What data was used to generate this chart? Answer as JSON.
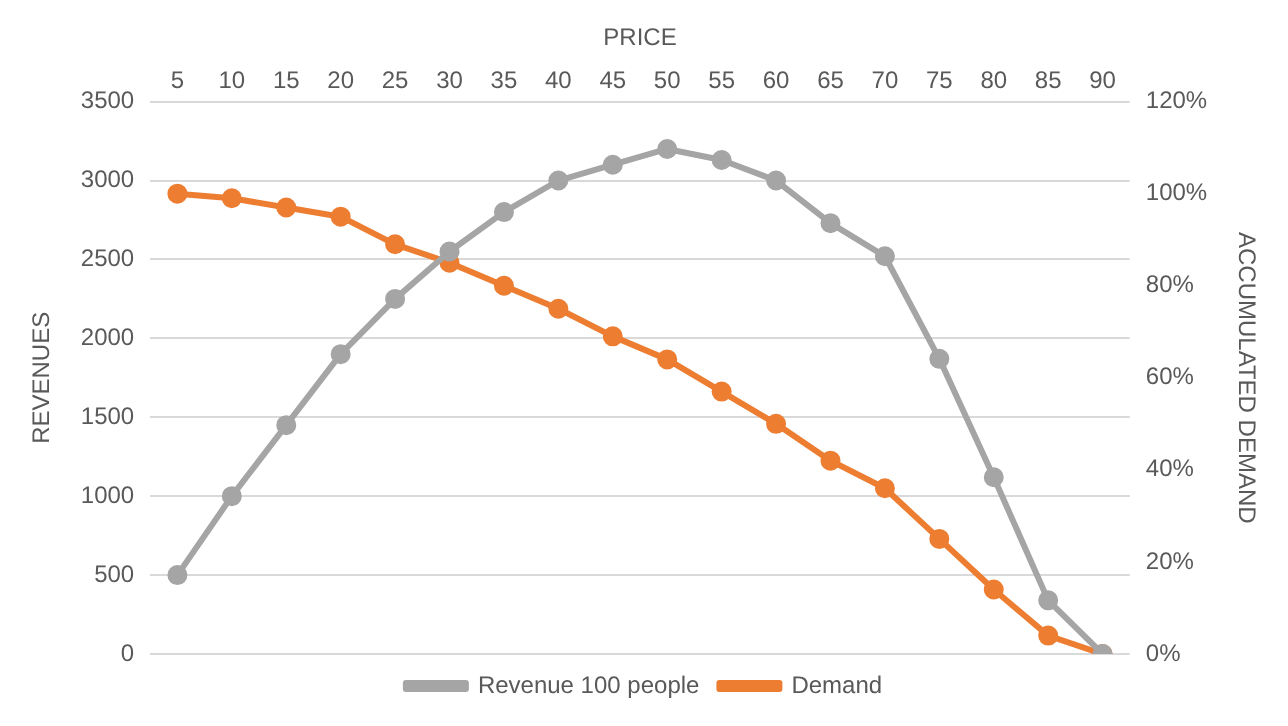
{
  "chart_data": {
    "type": "line",
    "xlabel": "PRICE",
    "ylabel": "REVENUES",
    "y2label": "ACCUMULATED DEMAND",
    "categories": [
      "5",
      "10",
      "15",
      "20",
      "25",
      "30",
      "35",
      "40",
      "45",
      "50",
      "55",
      "60",
      "65",
      "70",
      "75",
      "80",
      "85",
      "90"
    ],
    "series": [
      {
        "name": "Revenue 100 people",
        "color": "#a5a5a5",
        "values": [
          500,
          1000,
          1450,
          1900,
          2250,
          2550,
          2800,
          3000,
          3100,
          3200,
          3130,
          3000,
          2730,
          2520,
          1870,
          1120,
          340,
          0
        ]
      },
      {
        "name": "Demand",
        "color": "#ed7d31",
        "axis": "y2",
        "values": [
          100,
          99,
          97,
          95,
          89,
          85,
          80,
          75,
          69,
          64,
          57,
          50,
          42,
          36,
          25,
          14,
          4,
          0
        ]
      }
    ],
    "ylim": [
      0,
      3500
    ],
    "yticks": [
      0,
      500,
      1000,
      1500,
      2000,
      2500,
      3000,
      3500
    ],
    "y2lim": [
      0,
      120
    ],
    "y2ticks": [
      {
        "value": 0,
        "label": "0%"
      },
      {
        "value": 20,
        "label": "20%"
      },
      {
        "value": 40,
        "label": "40%"
      },
      {
        "value": 60,
        "label": "60%"
      },
      {
        "value": 80,
        "label": "80%"
      },
      {
        "value": 100,
        "label": "100%"
      },
      {
        "value": 120,
        "label": "120%"
      }
    ],
    "grid": "y",
    "legend": "bottom",
    "marker": "circle",
    "line_style": "solid"
  }
}
